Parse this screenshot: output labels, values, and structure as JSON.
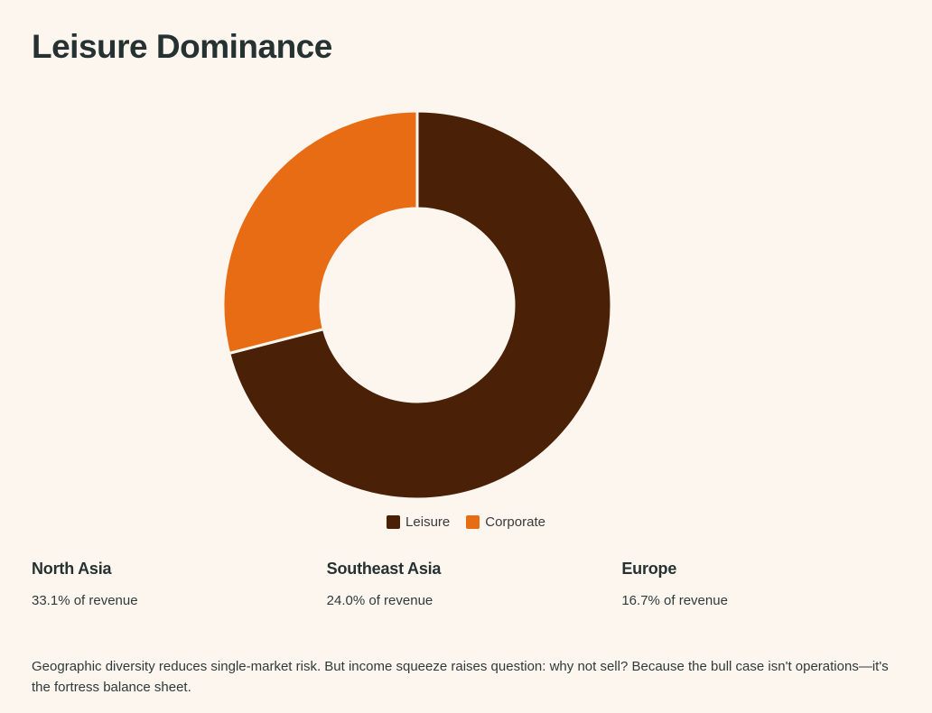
{
  "page": {
    "title": "Leisure Dominance",
    "note": "Geographic diversity reduces single-market risk. But income squeeze raises question: why not sell? Because the bull case isn't operations—it's the fortress balance sheet."
  },
  "chart_data": {
    "type": "pie",
    "variant": "donut",
    "labels": [
      "Leisure",
      "Corporate"
    ],
    "values": [
      71,
      29
    ],
    "colors": [
      "#4a2106",
      "#e86c14"
    ],
    "legend_position": "bottom",
    "title": ""
  },
  "legend": [
    {
      "label": "Leisure",
      "color": "#4a2106"
    },
    {
      "label": "Corporate",
      "color": "#e86c14"
    }
  ],
  "stats": [
    {
      "name": "North Asia",
      "value": "33.1% of revenue"
    },
    {
      "name": "Southeast Asia",
      "value": "24.0% of revenue"
    },
    {
      "name": "Europe",
      "value": "16.7% of revenue"
    }
  ]
}
